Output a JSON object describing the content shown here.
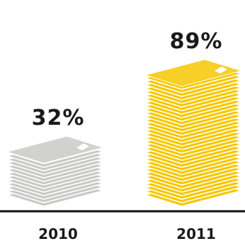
{
  "chart_data": {
    "type": "bar",
    "categories": [
      "2010",
      "2011"
    ],
    "values": [
      32,
      89
    ],
    "value_labels": [
      "32%",
      "89%"
    ],
    "colors": [
      "#c9c9c5",
      "#f6c700"
    ]
  }
}
